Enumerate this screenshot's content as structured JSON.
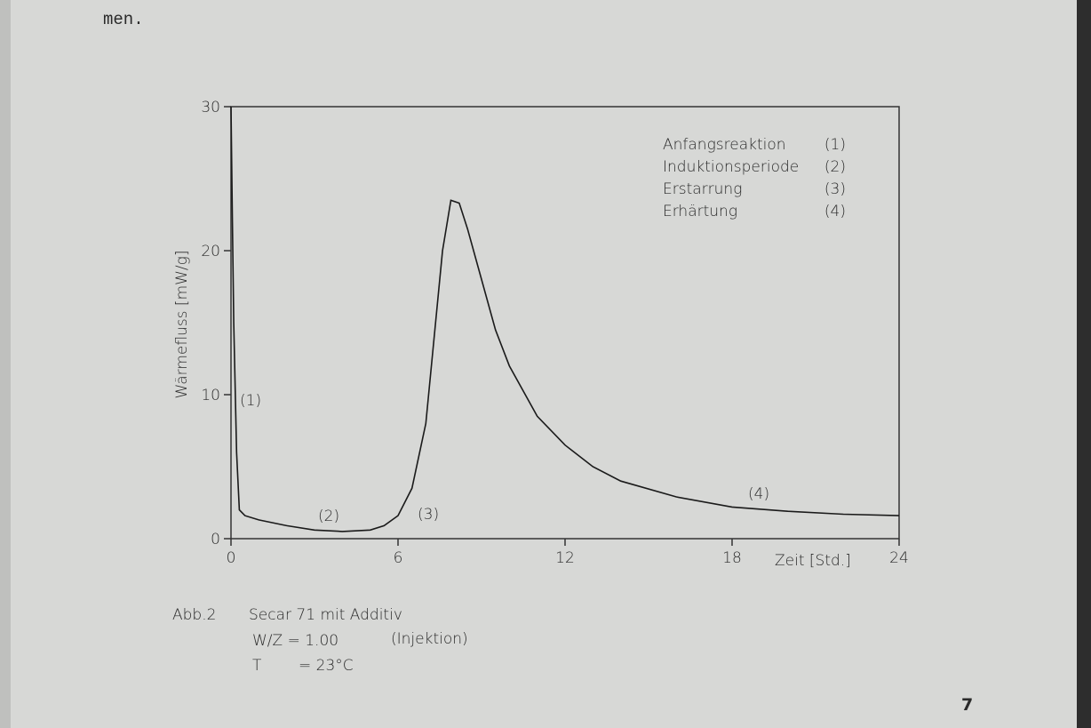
{
  "page_text": "men.",
  "chart_data": {
    "type": "line",
    "x": [
      0,
      0.05,
      0.1,
      0.2,
      0.3,
      0.5,
      1,
      2,
      3,
      4,
      5,
      5.5,
      6,
      6.5,
      7,
      7.3,
      7.6,
      7.9,
      8.2,
      8.5,
      9,
      9.5,
      10,
      11,
      12,
      13,
      14,
      16,
      18,
      20,
      22,
      24
    ],
    "values": [
      30,
      22,
      15,
      6,
      2,
      1.6,
      1.3,
      0.9,
      0.6,
      0.5,
      0.6,
      0.9,
      1.6,
      3.5,
      8,
      14,
      20,
      23.5,
      23.3,
      21.5,
      18,
      14.5,
      12,
      8.5,
      6.5,
      5,
      4,
      2.9,
      2.2,
      1.9,
      1.7,
      1.6
    ],
    "color": "#1a1a1a",
    "xlim": [
      0,
      24
    ],
    "xticks": [
      0,
      6,
      12,
      18,
      24
    ],
    "ylim": [
      0,
      30
    ],
    "yticks": [
      0,
      10,
      20,
      30
    ],
    "xlabel": "Zeit [Std.]",
    "ylabel": "Wärmefluss [mW/g]",
    "legend_entries": [
      {
        "label": "Anfangsreaktion",
        "key": "(1)"
      },
      {
        "label": "Induktionsperiode",
        "key": "(2)"
      },
      {
        "label": "Erstarrung",
        "key": "(3)"
      },
      {
        "label": "Erhärtung",
        "key": "(4)"
      }
    ],
    "annotations": [
      "(1)",
      "(2)",
      "(3)",
      "(4)"
    ]
  },
  "caption": {
    "label": "Abb.2",
    "line1": "Secar 71 mit Additiv",
    "wz": "W/Z = 1.00",
    "method": "(Injektion)",
    "t": "T",
    "temp": "= 23°C"
  },
  "page_number": "7"
}
